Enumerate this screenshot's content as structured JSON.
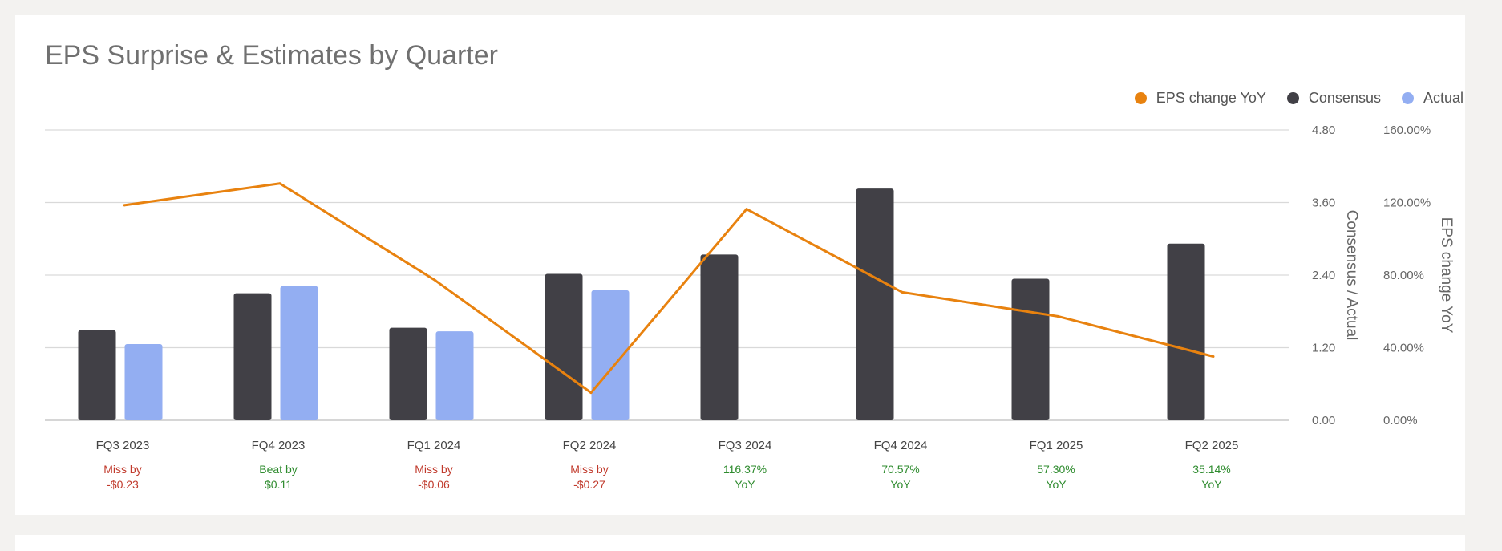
{
  "chart_data": {
    "type": "bar",
    "title": "EPS Surprise & Estimates by Quarter",
    "categories": [
      "FQ3 2023",
      "FQ4 2023",
      "FQ1 2024",
      "FQ2 2024",
      "FQ3 2024",
      "FQ4 2024",
      "FQ1 2025",
      "FQ2 2025"
    ],
    "series": [
      {
        "name": "Consensus",
        "kind": "bar",
        "axis": "left",
        "color": "#414046",
        "values": [
          1.49,
          2.1,
          1.53,
          2.42,
          2.74,
          3.83,
          2.34,
          2.92
        ]
      },
      {
        "name": "Actual",
        "kind": "bar",
        "axis": "left",
        "color": "#93aef2",
        "values": [
          1.26,
          2.22,
          1.47,
          2.15,
          null,
          null,
          null,
          null
        ]
      },
      {
        "name": "EPS change YoY",
        "kind": "line",
        "axis": "right",
        "color": "#e8820f",
        "values": [
          118.5,
          130.5,
          77.0,
          15.2,
          116.37,
          70.57,
          57.3,
          35.14
        ]
      }
    ],
    "legend_order": [
      "EPS change YoY",
      "Consensus",
      "Actual"
    ],
    "legend_position": "top-right",
    "y_left": {
      "label": "Consensus / Actual",
      "ylim": [
        0,
        4.8
      ],
      "ticks": [
        "0.00",
        "1.20",
        "2.40",
        "3.60",
        "4.80"
      ]
    },
    "y_right": {
      "label": "EPS change YoY",
      "ylim": [
        0,
        160
      ],
      "ticks": [
        "0.00%",
        "40.00%",
        "80.00%",
        "120.00%",
        "160.00%"
      ]
    },
    "grid": true,
    "annotations": [
      {
        "line1": "Miss by",
        "line2": "-$0.23",
        "status": "miss"
      },
      {
        "line1": "Beat by",
        "line2": "$0.11",
        "status": "beat"
      },
      {
        "line1": "Miss by",
        "line2": "-$0.06",
        "status": "miss"
      },
      {
        "line1": "Miss by",
        "line2": "-$0.27",
        "status": "miss"
      },
      {
        "line1": "116.37%",
        "line2": "YoY",
        "status": "positive"
      },
      {
        "line1": "70.57%",
        "line2": "YoY",
        "status": "positive"
      },
      {
        "line1": "57.30%",
        "line2": "YoY",
        "status": "positive"
      },
      {
        "line1": "35.14%",
        "line2": "YoY",
        "status": "positive"
      }
    ],
    "status_colors": {
      "miss": "#c0392b",
      "beat": "#2e8b2e",
      "positive": "#2e8b2e"
    },
    "grid_color": "#d9d9d9",
    "axis_text_color": "#666666"
  }
}
